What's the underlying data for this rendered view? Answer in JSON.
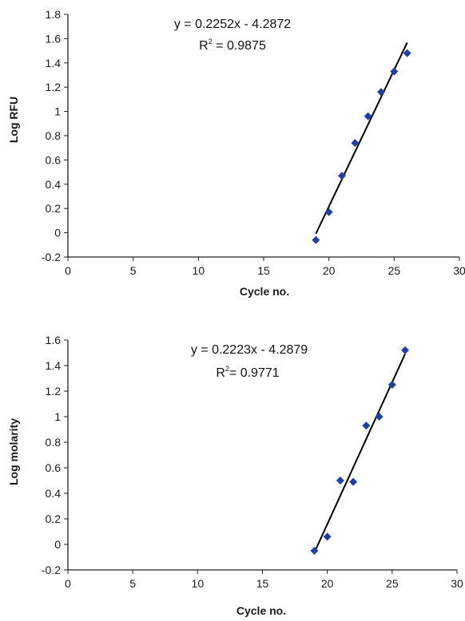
{
  "colors": {
    "marker": "#1f3fa8",
    "fit_line": "#000000",
    "axis": "#222222"
  },
  "chart_data": [
    {
      "type": "scatter",
      "title": "",
      "xlabel": "Cycle no.",
      "ylabel": "Log RFU",
      "xlim": [
        0,
        30
      ],
      "ylim": [
        -0.2,
        1.8
      ],
      "x_ticks": [
        "0",
        "5",
        "10",
        "15",
        "20",
        "25",
        "30"
      ],
      "y_ticks": [
        "1.8",
        "1.6",
        "1.4",
        "1.2",
        "1",
        "0.8",
        "0.6",
        "0.4",
        "0.2",
        "0",
        "-0.2"
      ],
      "grid": false,
      "series": [
        {
          "x": [
            19,
            20,
            21,
            22,
            23,
            24,
            25,
            26
          ],
          "y": [
            -0.06,
            0.17,
            0.47,
            0.74,
            0.96,
            1.16,
            1.33,
            1.48
          ]
        }
      ],
      "trendline": {
        "slope": 0.2252,
        "intercept": -4.2872,
        "x_range": [
          19,
          26
        ]
      },
      "equation": "y = 0.2252x - 4.2872",
      "r2_prefix": "R",
      "r2_exp": "2",
      "r2_value": " = 0.9875"
    },
    {
      "type": "scatter",
      "title": "",
      "xlabel": "Cycle no.",
      "ylabel": "Log molarity",
      "xlim": [
        0,
        30
      ],
      "ylim": [
        -0.2,
        1.6
      ],
      "x_ticks": [
        "0",
        "5",
        "10",
        "15",
        "20",
        "25",
        "30"
      ],
      "y_ticks": [
        "1.6",
        "1.4",
        "1.2",
        "1",
        "0.8",
        "0.6",
        "0.4",
        "0.2",
        "0",
        "-0.2"
      ],
      "grid": false,
      "series": [
        {
          "x": [
            19,
            20,
            21,
            22,
            23,
            24,
            25,
            26
          ],
          "y": [
            -0.05,
            0.06,
            0.5,
            0.49,
            0.93,
            1.0,
            1.25,
            1.52
          ]
        }
      ],
      "trendline": {
        "slope": 0.2223,
        "intercept": -4.2879,
        "x_range": [
          19,
          26
        ]
      },
      "equation": "y = 0.2223x - 4.2879",
      "r2_prefix": "R",
      "r2_exp": "2",
      "r2_value": "= 0.9771"
    }
  ]
}
